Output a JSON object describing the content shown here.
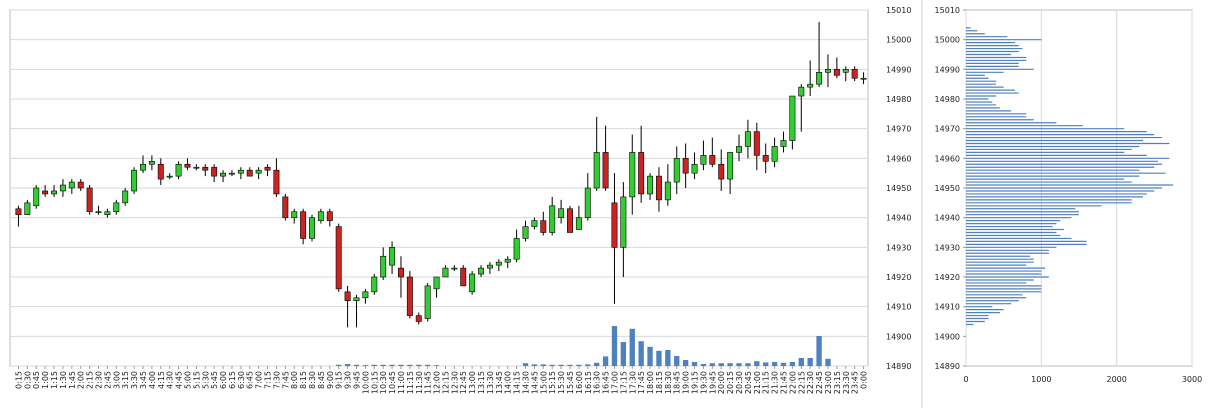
{
  "chart_data": [
    {
      "type": "candlestick",
      "title": "",
      "xlabel": "",
      "ylabel": "",
      "ylim": [
        14890,
        15010
      ],
      "yticks": [
        14890,
        14900,
        14910,
        14920,
        14930,
        14940,
        14950,
        14960,
        14970,
        14980,
        14990,
        15000,
        15010
      ],
      "grid": true,
      "up_color": "#33cc33",
      "down_color": "#cc2222",
      "volume_color": "#4f81bd",
      "x": [
        "0:15",
        "0:30",
        "0:45",
        "1:00",
        "1:15",
        "1:30",
        "1:45",
        "2:00",
        "2:15",
        "2:30",
        "2:45",
        "3:00",
        "3:15",
        "3:30",
        "3:45",
        "4:00",
        "4:15",
        "4:30",
        "4:45",
        "5:00",
        "5:15",
        "5:30",
        "5:45",
        "6:00",
        "6:15",
        "6:30",
        "6:45",
        "7:00",
        "7:15",
        "7:30",
        "7:45",
        "8:00",
        "8:15",
        "8:30",
        "8:45",
        "9:00",
        "9:15",
        "9:30",
        "9:45",
        "10:00",
        "10:15",
        "10:30",
        "10:45",
        "11:00",
        "11:15",
        "11:30",
        "11:45",
        "12:00",
        "12:15",
        "12:30",
        "12:45",
        "13:00",
        "13:15",
        "13:30",
        "13:45",
        "14:00",
        "14:15",
        "14:30",
        "14:45",
        "15:00",
        "15:15",
        "15:30",
        "15:45",
        "16:00",
        "16:15",
        "16:30",
        "16:45",
        "17:00",
        "17:15",
        "17:30",
        "17:45",
        "18:00",
        "18:15",
        "18:30",
        "18:45",
        "19:00",
        "19:15",
        "19:30",
        "19:45",
        "20:00",
        "20:15",
        "20:30",
        "20:45",
        "21:00",
        "21:15",
        "21:30",
        "21:45",
        "22:00",
        "22:15",
        "22:30",
        "22:45",
        "23:00",
        "23:15",
        "23:30",
        "23:45",
        "0:00"
      ],
      "candles": [
        [
          14943,
          14944,
          14937,
          14941
        ],
        [
          14941,
          14946,
          14941,
          14945
        ],
        [
          14944,
          14951,
          14943,
          14950
        ],
        [
          14949,
          14951,
          14947,
          14948
        ],
        [
          14948,
          14951,
          14947,
          14949
        ],
        [
          14949,
          14953,
          14947,
          14951
        ],
        [
          14950,
          14953,
          14948,
          14952
        ],
        [
          14952,
          14953,
          14949,
          14950
        ],
        [
          14950,
          14951,
          14941,
          14942
        ],
        [
          14942,
          14944,
          14941,
          14942
        ],
        [
          14941,
          14943,
          14940,
          14942
        ],
        [
          14942,
          14946,
          14941,
          14945
        ],
        [
          14945,
          14950,
          14944,
          14949
        ],
        [
          14949,
          14957,
          14948,
          14956
        ],
        [
          14956,
          14961,
          14955,
          14958
        ],
        [
          14958,
          14961,
          14956,
          14959
        ],
        [
          14958,
          14960,
          14951,
          14953
        ],
        [
          14954,
          14955,
          14953,
          14954
        ],
        [
          14954,
          14959,
          14953,
          14958
        ],
        [
          14958,
          14960,
          14956,
          14957
        ],
        [
          14957,
          14958,
          14956,
          14957
        ],
        [
          14957,
          14958,
          14954,
          14956
        ],
        [
          14957,
          14958,
          14952,
          14954
        ],
        [
          14954,
          14956,
          14952,
          14955
        ],
        [
          14955,
          14956,
          14954,
          14955
        ],
        [
          14955,
          14957,
          14953,
          14956
        ],
        [
          14956,
          14957,
          14954,
          14954
        ],
        [
          14955,
          14957,
          14953,
          14956
        ],
        [
          14957,
          14958,
          14954,
          14956
        ],
        [
          14956,
          14960,
          14947,
          14948
        ],
        [
          14947,
          14948,
          14939,
          14940
        ],
        [
          14940,
          14943,
          14938,
          14942
        ],
        [
          14942,
          14943,
          14931,
          14933
        ],
        [
          14933,
          14941,
          14932,
          14940
        ],
        [
          14939,
          14943,
          14938,
          14942
        ],
        [
          14942,
          14943,
          14937,
          14939
        ],
        [
          14937,
          14938,
          14915,
          14916
        ],
        [
          14915,
          14917,
          14903,
          14912
        ],
        [
          14912,
          14914,
          14903,
          14913
        ],
        [
          14913,
          14916,
          14911,
          14915
        ],
        [
          14915,
          14921,
          14914,
          14920
        ],
        [
          14920,
          14930,
          14919,
          14927
        ],
        [
          14924,
          14932,
          14921,
          14930
        ],
        [
          14923,
          14927,
          14913,
          14920
        ],
        [
          14920,
          14922,
          14906,
          14907
        ],
        [
          14907,
          14908,
          14904,
          14905
        ],
        [
          14906,
          14918,
          14905,
          14917
        ],
        [
          14916,
          14920,
          14913,
          14920
        ],
        [
          14920,
          14924,
          14920,
          14923
        ],
        [
          14923,
          14924,
          14922,
          14923
        ],
        [
          14923,
          14924,
          14917,
          14917
        ],
        [
          14915,
          14922,
          14914,
          14921
        ],
        [
          14921,
          14924,
          14920,
          14923
        ],
        [
          14923,
          14925,
          14921,
          14924
        ],
        [
          14924,
          14926,
          14922,
          14925
        ],
        [
          14925,
          14927,
          14923,
          14926
        ],
        [
          14926,
          14936,
          14925,
          14933
        ],
        [
          14933,
          14939,
          14932,
          14937
        ],
        [
          14937,
          14940,
          14936,
          14939
        ],
        [
          14939,
          14942,
          14934,
          14935
        ],
        [
          14935,
          14947,
          14934,
          14944
        ],
        [
          14940,
          14946,
          14938,
          14943
        ],
        [
          14943,
          14944,
          14935,
          14935
        ],
        [
          14936,
          14944,
          14936,
          14940
        ],
        [
          14940,
          14955,
          14939,
          14950
        ],
        [
          14950,
          14974,
          14949,
          14962
        ],
        [
          14962,
          14971,
          14949,
          14950
        ],
        [
          14945,
          14955,
          14911,
          14930
        ],
        [
          14930,
          14952,
          14920,
          14947
        ],
        [
          14947,
          14968,
          14941,
          14962
        ],
        [
          14962,
          14971,
          14945,
          14948
        ],
        [
          14948,
          14955,
          14946,
          14954
        ],
        [
          14954,
          14957,
          14942,
          14946
        ],
        [
          14946,
          14958,
          14944,
          14952
        ],
        [
          14952,
          14964,
          14948,
          14960
        ],
        [
          14960,
          14965,
          14950,
          14955
        ],
        [
          14955,
          14962,
          14953,
          14958
        ],
        [
          14958,
          14966,
          14956,
          14961
        ],
        [
          14961,
          14967,
          14957,
          14958
        ],
        [
          14958,
          14963,
          14949,
          14953
        ],
        [
          14953,
          14962,
          14948,
          14962
        ],
        [
          14962,
          14968,
          14959,
          14964
        ],
        [
          14964,
          14973,
          14960,
          14969
        ],
        [
          14969,
          14972,
          14956,
          14961
        ],
        [
          14961,
          14965,
          14955,
          14959
        ],
        [
          14959,
          14967,
          14957,
          14964
        ],
        [
          14964,
          14969,
          14962,
          14966
        ],
        [
          14966,
          14981,
          14963,
          14981
        ],
        [
          14981,
          14985,
          14969,
          14984
        ],
        [
          14984,
          14993,
          14981,
          14985
        ],
        [
          14985,
          15006,
          14984,
          14989
        ],
        [
          14989,
          14995,
          14984,
          14990
        ],
        [
          14990,
          14994,
          14987,
          14988
        ],
        [
          14989,
          14991,
          14986,
          14990
        ],
        [
          14990,
          14991,
          14986,
          14987
        ],
        [
          14987,
          14989,
          14985,
          14987
        ]
      ],
      "volume": [
        0,
        0,
        0,
        0,
        0,
        0,
        0,
        0,
        0,
        0,
        0,
        0,
        0,
        0,
        0,
        0,
        0,
        0,
        0,
        0,
        0,
        0,
        0,
        0,
        0,
        0,
        0,
        0,
        0,
        0,
        0,
        0,
        0,
        0,
        0,
        0,
        300,
        500,
        300,
        200,
        300,
        300,
        300,
        300,
        300,
        300,
        300,
        200,
        0,
        0,
        0,
        0,
        0,
        0,
        0,
        0,
        0,
        700,
        400,
        400,
        300,
        300,
        300,
        300,
        400,
        800,
        2400,
        10000,
        6000,
        9300,
        6200,
        4800,
        3800,
        4000,
        2500,
        1500,
        1000,
        500,
        700,
        700,
        700,
        700,
        700,
        1200,
        900,
        1000,
        800,
        1000,
        2000,
        2000,
        7500,
        1800,
        0,
        0,
        0,
        0
      ]
    },
    {
      "type": "horizontal-histogram",
      "title": "",
      "xlabel": "",
      "ylabel": "",
      "xlim": [
        0,
        3000
      ],
      "xticks": [
        0,
        1000,
        2000,
        3000
      ],
      "ylim": [
        14890,
        15010
      ],
      "yticks": [
        14890,
        14900,
        14910,
        14920,
        14930,
        14940,
        14950,
        14960,
        14970,
        14980,
        14990,
        15000,
        15010
      ],
      "grid": true,
      "bar_color": "#4f81bd",
      "prices": [
        14904,
        14905,
        14906,
        14907,
        14908,
        14909,
        14910,
        14911,
        14912,
        14913,
        14914,
        14915,
        14916,
        14917,
        14918,
        14919,
        14920,
        14921,
        14922,
        14923,
        14924,
        14925,
        14926,
        14927,
        14928,
        14929,
        14930,
        14931,
        14932,
        14933,
        14934,
        14935,
        14936,
        14937,
        14938,
        14939,
        14940,
        14941,
        14942,
        14943,
        14944,
        14945,
        14946,
        14947,
        14948,
        14949,
        14950,
        14951,
        14952,
        14953,
        14954,
        14955,
        14956,
        14957,
        14958,
        14959,
        14960,
        14961,
        14962,
        14963,
        14964,
        14965,
        14966,
        14967,
        14968,
        14969,
        14970,
        14971,
        14972,
        14973,
        14974,
        14975,
        14976,
        14977,
        14978,
        14979,
        14980,
        14981,
        14982,
        14983,
        14984,
        14985,
        14986,
        14987,
        14988,
        14989,
        14990,
        14991,
        14992,
        14993,
        14994,
        14995,
        14996,
        14997,
        14998,
        14999,
        15000,
        15001,
        15002,
        15003,
        15004
      ],
      "values": [
        100,
        250,
        300,
        300,
        450,
        500,
        350,
        600,
        700,
        800,
        750,
        1000,
        1000,
        1000,
        800,
        900,
        1100,
        1000,
        1000,
        1050,
        800,
        900,
        900,
        850,
        1100,
        1100,
        1200,
        1600,
        1600,
        1400,
        1250,
        1200,
        1300,
        1150,
        1200,
        1250,
        1400,
        1500,
        1500,
        1450,
        1800,
        2200,
        2200,
        2350,
        2400,
        2500,
        2600,
        2750,
        2200,
        2100,
        2300,
        2650,
        2300,
        2500,
        2600,
        2550,
        2700,
        2400,
        2100,
        2200,
        2300,
        2700,
        2350,
        2600,
        2500,
        2400,
        2100,
        1550,
        1200,
        900,
        800,
        800,
        600,
        450,
        400,
        350,
        300,
        400,
        700,
        650,
        500,
        400,
        400,
        300,
        250,
        500,
        900,
        700,
        700,
        800,
        800,
        600,
        700,
        750,
        700,
        650,
        1000,
        550,
        250,
        150,
        60
      ]
    }
  ]
}
